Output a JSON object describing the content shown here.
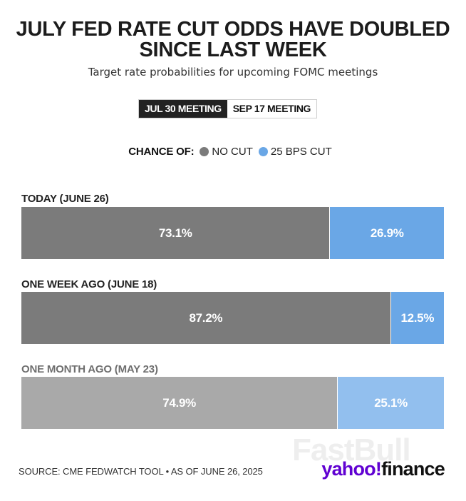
{
  "chart_data": {
    "type": "bar",
    "stacked": true,
    "orientation": "horizontal",
    "title_lines": [
      "JULY FED RATE CUT ODDS HAVE DOUBLED",
      "SINCE LAST WEEK"
    ],
    "subtitle": "Target rate probabilities for upcoming FOMC meetings",
    "tabs": [
      {
        "label": "JUL 30 MEETING",
        "active": true
      },
      {
        "label": "SEP 17 MEETING",
        "active": false
      }
    ],
    "legend": {
      "title": "CHANCE OF:",
      "items": [
        {
          "label": "NO CUT",
          "color": "#7b7b7b"
        },
        {
          "label": "25 BPS CUT",
          "color": "#6aa7e6"
        }
      ]
    },
    "categories": [
      "TODAY (JUNE 26)",
      "ONE WEEK AGO (JUNE 18)",
      "ONE MONTH AGO (MAY 23)"
    ],
    "series": [
      {
        "name": "NO CUT",
        "values": [
          73.1,
          87.2,
          74.9
        ],
        "labels": [
          "73.1%",
          "87.2%",
          "74.9%"
        ]
      },
      {
        "name": "25 BPS CUT",
        "values": [
          26.9,
          12.5,
          25.1
        ],
        "labels": [
          "26.9%",
          "12.5%",
          "25.1%"
        ]
      }
    ],
    "row_label_colors": [
      "#222222",
      "#222222",
      "#6e6e6e"
    ],
    "row_colors": [
      {
        "nocut": "#7b7b7b",
        "cut": "#6aa7e6"
      },
      {
        "nocut": "#7b7b7b",
        "cut": "#6aa7e6"
      },
      {
        "nocut": "#a9a9a9",
        "cut": "#92bfee"
      }
    ],
    "xlim": [
      0,
      100
    ]
  },
  "footer": {
    "source": "SOURCE: CME FEDWATCH TOOL • AS OF JUNE 26, 2025",
    "watermark": "FastBull",
    "logo_main": "yahoo!",
    "logo_suffix": "finance"
  }
}
